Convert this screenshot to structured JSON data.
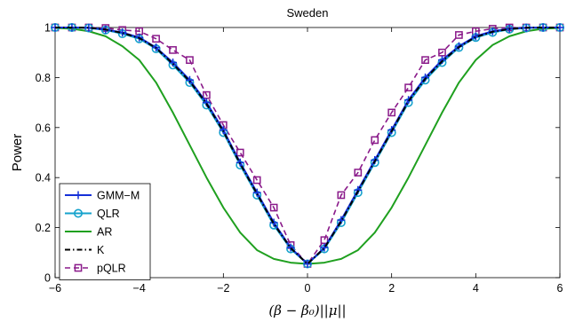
{
  "chart_data": {
    "type": "line",
    "title": "Sweden",
    "xlabel": "(β − β₀)||μ||",
    "ylabel": "Power",
    "xlim": [
      -6,
      6
    ],
    "ylim": [
      0,
      1
    ],
    "xticks": [
      "−6",
      "−4",
      "−2",
      "0",
      "2",
      "4",
      "6"
    ],
    "yticks": [
      "0",
      "0.2",
      "0.4",
      "0.6",
      "0.8",
      "1"
    ],
    "legend_position": "bottom-left",
    "grid": false,
    "series": [
      {
        "name": "GMM−M",
        "color": "#1530d8",
        "marker": "plus",
        "x": [
          -6,
          -5.6,
          -5.2,
          -4.8,
          -4.4,
          -4,
          -3.6,
          -3.2,
          -2.8,
          -2.4,
          -2,
          -1.6,
          -1.2,
          -0.8,
          -0.4,
          0,
          0.4,
          0.8,
          1.2,
          1.6,
          2,
          2.4,
          2.8,
          3.2,
          3.6,
          4,
          4.4,
          4.8,
          5.2,
          5.6,
          6
        ],
        "y": [
          1.0,
          1.0,
          0.999,
          0.992,
          0.98,
          0.96,
          0.92,
          0.86,
          0.79,
          0.7,
          0.59,
          0.46,
          0.34,
          0.22,
          0.12,
          0.055,
          0.12,
          0.23,
          0.35,
          0.47,
          0.59,
          0.71,
          0.8,
          0.87,
          0.925,
          0.965,
          0.985,
          0.995,
          0.999,
          1.0,
          1.0
        ]
      },
      {
        "name": "QLR",
        "color": "#15a2cc",
        "marker": "circle",
        "x": [
          -6,
          -5.6,
          -5.2,
          -4.8,
          -4.4,
          -4,
          -3.6,
          -3.2,
          -2.8,
          -2.4,
          -2,
          -1.6,
          -1.2,
          -0.8,
          -0.4,
          0,
          0.4,
          0.8,
          1.2,
          1.6,
          2,
          2.4,
          2.8,
          3.2,
          3.6,
          4,
          4.4,
          4.8,
          5.2,
          5.6,
          6
        ],
        "y": [
          1.0,
          1.0,
          0.998,
          0.99,
          0.975,
          0.955,
          0.915,
          0.85,
          0.78,
          0.69,
          0.58,
          0.45,
          0.33,
          0.21,
          0.115,
          0.055,
          0.115,
          0.22,
          0.34,
          0.46,
          0.58,
          0.7,
          0.79,
          0.86,
          0.92,
          0.96,
          0.98,
          0.993,
          0.998,
          1.0,
          1.0
        ]
      },
      {
        "name": "AR",
        "color": "#1fa01f",
        "marker": "none",
        "x": [
          -6,
          -5.6,
          -5.2,
          -4.8,
          -4.4,
          -4,
          -3.6,
          -3.2,
          -2.8,
          -2.4,
          -2,
          -1.6,
          -1.2,
          -0.8,
          -0.4,
          0,
          0.4,
          0.8,
          1.2,
          1.6,
          2,
          2.4,
          2.8,
          3.2,
          3.6,
          4,
          4.4,
          4.8,
          5.2,
          5.6,
          6
        ],
        "y": [
          0.998,
          0.995,
          0.985,
          0.965,
          0.925,
          0.87,
          0.78,
          0.66,
          0.53,
          0.4,
          0.28,
          0.18,
          0.11,
          0.075,
          0.06,
          0.055,
          0.06,
          0.075,
          0.11,
          0.18,
          0.28,
          0.4,
          0.53,
          0.66,
          0.78,
          0.87,
          0.93,
          0.965,
          0.985,
          0.995,
          0.998
        ]
      },
      {
        "name": "K",
        "color": "#000000",
        "marker": "none",
        "x": [
          -6,
          -5.6,
          -5.2,
          -4.8,
          -4.4,
          -4,
          -3.6,
          -3.2,
          -2.8,
          -2.4,
          -2,
          -1.6,
          -1.2,
          -0.8,
          -0.4,
          0,
          0.4,
          0.8,
          1.2,
          1.6,
          2,
          2.4,
          2.8,
          3.2,
          3.6,
          4,
          4.4,
          4.8,
          5.2,
          5.6,
          6
        ],
        "y": [
          1.0,
          1.0,
          0.999,
          0.992,
          0.978,
          0.958,
          0.918,
          0.855,
          0.785,
          0.695,
          0.585,
          0.455,
          0.335,
          0.215,
          0.118,
          0.055,
          0.118,
          0.225,
          0.345,
          0.465,
          0.585,
          0.705,
          0.795,
          0.865,
          0.922,
          0.962,
          0.983,
          0.994,
          0.999,
          1.0,
          1.0
        ]
      },
      {
        "name": "pQLR",
        "color": "#8a1a8a",
        "marker": "square",
        "x": [
          -6,
          -5.6,
          -5.2,
          -4.8,
          -4.4,
          -4,
          -3.6,
          -3.2,
          -2.8,
          -2.4,
          -2,
          -1.6,
          -1.2,
          -0.8,
          -0.4,
          0,
          0.4,
          0.8,
          1.2,
          1.6,
          2,
          2.4,
          2.8,
          3.2,
          3.6,
          4,
          4.4,
          4.8,
          5.2,
          5.6,
          6
        ],
        "y": [
          1.0,
          1.0,
          1.0,
          0.998,
          0.99,
          0.985,
          0.955,
          0.91,
          0.87,
          0.73,
          0.61,
          0.5,
          0.39,
          0.28,
          0.13,
          0.055,
          0.15,
          0.33,
          0.42,
          0.55,
          0.66,
          0.76,
          0.87,
          0.9,
          0.97,
          0.985,
          0.995,
          1.0,
          1.0,
          1.0,
          1.0
        ]
      }
    ]
  }
}
